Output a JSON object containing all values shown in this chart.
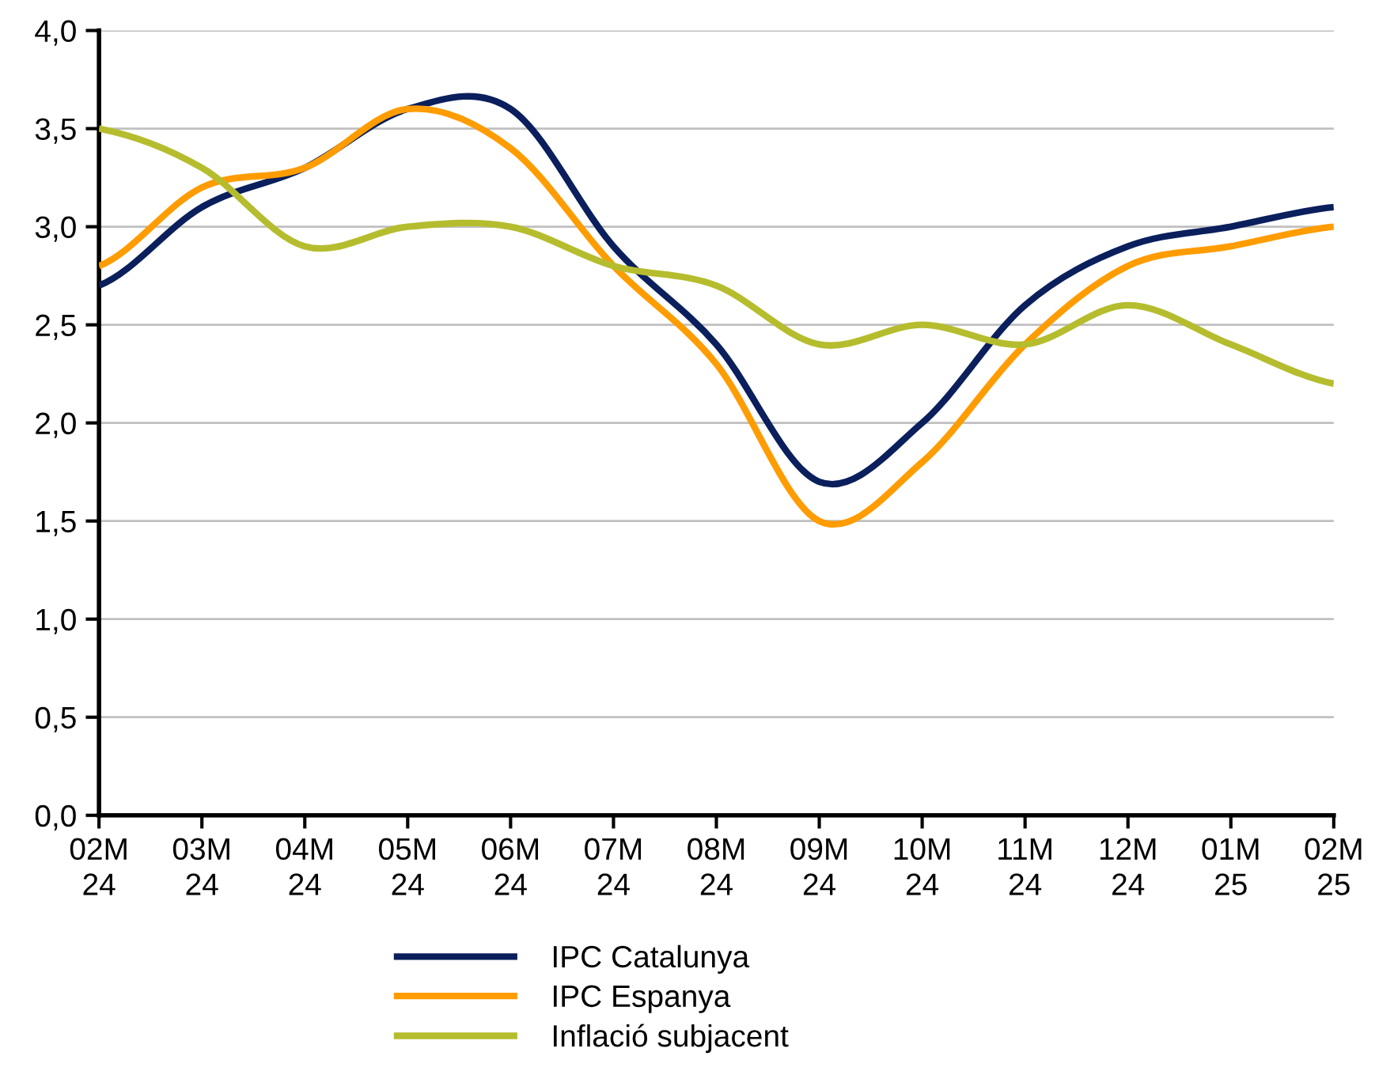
{
  "chart_data": {
    "type": "line",
    "categories": [
      "02M\n24",
      "03M\n24",
      "04M\n24",
      "05M\n24",
      "06M\n24",
      "07M\n24",
      "08M\n24",
      "09M\n24",
      "10M\n24",
      "11M\n24",
      "12M\n24",
      "01M\n25",
      "02M\n25"
    ],
    "series": [
      {
        "name": "IPC Catalunya",
        "color": "#0a1f5c",
        "values": [
          2.7,
          3.1,
          3.3,
          3.6,
          3.6,
          2.9,
          2.4,
          1.7,
          2.0,
          2.6,
          2.9,
          3.0,
          3.1
        ]
      },
      {
        "name": "IPC Espanya",
        "color": "#ff9c00",
        "values": [
          2.8,
          3.2,
          3.3,
          3.6,
          3.4,
          2.8,
          2.3,
          1.5,
          1.8,
          2.4,
          2.8,
          2.9,
          3.0
        ]
      },
      {
        "name": "Inflació subjacent",
        "color": "#b5bd2e",
        "values": [
          3.5,
          3.3,
          2.9,
          3.0,
          3.0,
          2.8,
          2.7,
          2.4,
          2.5,
          2.4,
          2.6,
          2.4,
          2.2
        ]
      }
    ],
    "ylim": [
      0,
      4
    ],
    "yticks": [
      {
        "value": 0,
        "label": "0,0"
      },
      {
        "value": 0.5,
        "label": "0,5"
      },
      {
        "value": 1,
        "label": "1,0"
      },
      {
        "value": 1.5,
        "label": "1,5"
      },
      {
        "value": 2,
        "label": "2,0"
      },
      {
        "value": 2.5,
        "label": "2,5"
      },
      {
        "value": 3,
        "label": "3,0"
      },
      {
        "value": 3.5,
        "label": "3,5"
      },
      {
        "value": 4,
        "label": "4,0"
      }
    ],
    "grid": "y",
    "legend": "bottom",
    "marker": "none",
    "line_style": "solid"
  }
}
